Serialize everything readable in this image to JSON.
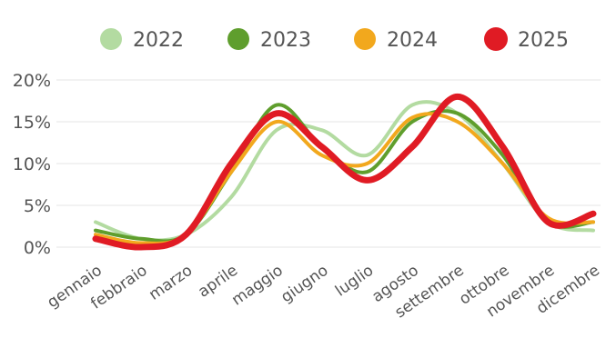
{
  "chart_data": {
    "type": "line",
    "categories": [
      "gennaio",
      "febbraio",
      "marzo",
      "aprile",
      "maggio",
      "giugno",
      "luglio",
      "agosto",
      "settembre",
      "ottobre",
      "novembre",
      "dicembre"
    ],
    "series": [
      {
        "name": "2022",
        "color": "#b3dba1",
        "values": [
          3,
          1,
          1.5,
          6,
          14,
          14,
          11,
          17,
          16,
          10,
          3,
          2
        ]
      },
      {
        "name": "2023",
        "color": "#5f9e2d",
        "values": [
          2,
          1,
          1.5,
          9,
          17,
          12,
          9,
          15,
          16,
          11,
          3,
          3
        ]
      },
      {
        "name": "2024",
        "color": "#f2a81d",
        "values": [
          1.5,
          0.5,
          1.5,
          9,
          15,
          11,
          10,
          15.5,
          15,
          10,
          3.5,
          3
        ]
      },
      {
        "name": "2025",
        "color": "#e01b24",
        "values": [
          1,
          0,
          1.5,
          10,
          16,
          12,
          8,
          12,
          18,
          12,
          3,
          4
        ]
      }
    ],
    "ylim": [
      0,
      20
    ],
    "yticks": [
      "0%",
      "5%",
      "10%",
      "15%",
      "20%"
    ],
    "grid": true,
    "legend_position": "top"
  }
}
